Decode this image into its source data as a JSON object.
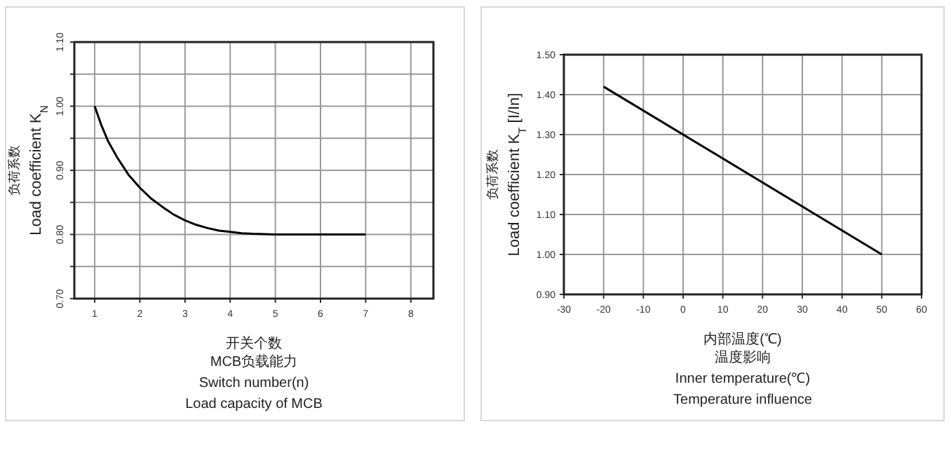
{
  "chart_data": [
    {
      "type": "line",
      "ylabel": "负荷系数\nLoad coefficient K$_{N}$",
      "xlabel": "开关个数",
      "annotations": [
        "MCB负载能力",
        "Switch number(n)",
        "Load capacity of MCB"
      ],
      "x": [
        1,
        1.15,
        1.3,
        1.5,
        1.75,
        2,
        2.25,
        2.5,
        2.75,
        3,
        3.25,
        3.5,
        3.75,
        4,
        4.25,
        4.5,
        5,
        5.5,
        6,
        6.5,
        7
      ],
      "values": [
        1.0,
        0.97,
        0.945,
        0.92,
        0.893,
        0.873,
        0.856,
        0.843,
        0.831,
        0.822,
        0.815,
        0.81,
        0.806,
        0.804,
        0.802,
        0.801,
        0.8,
        0.8,
        0.8,
        0.8,
        0.8
      ],
      "color": "#000000",
      "xlim": [
        0.55,
        8.5
      ],
      "ylim": [
        0.7,
        1.1
      ],
      "xticks": [
        1,
        2,
        3,
        4,
        5,
        6,
        7,
        8
      ],
      "yticks": [
        {
          "value": 0.7,
          "label": "0.70"
        },
        {
          "value": 0.75,
          "label": null
        },
        {
          "value": 0.8,
          "label": "0.80"
        },
        {
          "value": 0.85,
          "label": null
        },
        {
          "value": 0.9,
          "label": "0.90"
        },
        {
          "value": 0.95,
          "label": null
        },
        {
          "value": 1.0,
          "label": "1.00"
        },
        {
          "value": 1.05,
          "label": null
        },
        {
          "value": 1.1,
          "label": "1.10"
        }
      ],
      "grid": true
    },
    {
      "type": "line",
      "ylabel": "负荷系数\nLoad coefficient K$_{T}$  [I/In]",
      "xlabel": "内部温度(℃)",
      "annotations": [
        "温度影响",
        "Inner temperature(℃)",
        "Temperature influence"
      ],
      "x": [
        -20,
        50
      ],
      "values": [
        1.42,
        1.0
      ],
      "color": "#000000",
      "xlim": [
        -30,
        60
      ],
      "ylim": [
        0.9,
        1.5
      ],
      "xticks": [
        -30,
        -20,
        -10,
        0,
        10,
        20,
        30,
        40,
        50,
        60
      ],
      "yticks": [
        {
          "value": 0.9,
          "label": "0.90"
        },
        {
          "value": 1.0,
          "label": "1.00"
        },
        {
          "value": 1.1,
          "label": "1.10"
        },
        {
          "value": 1.2,
          "label": "1.20"
        },
        {
          "value": 1.3,
          "label": "1.30"
        },
        {
          "value": 1.4,
          "label": "1.40"
        },
        {
          "value": 1.5,
          "label": "1.50"
        }
      ],
      "grid": true
    }
  ]
}
